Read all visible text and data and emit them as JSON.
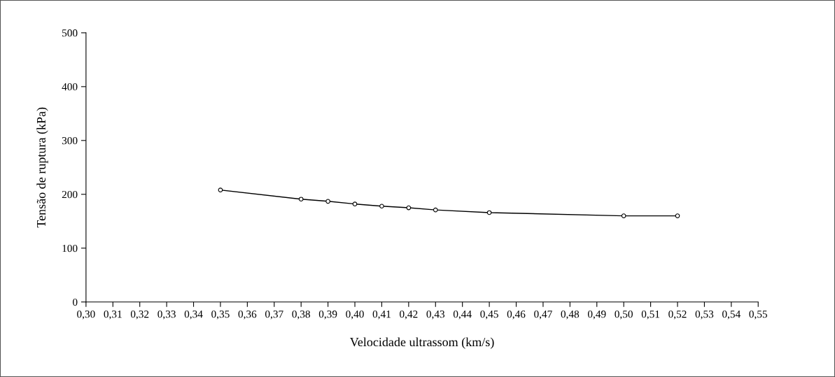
{
  "chart_data": {
    "type": "line",
    "xlabel": "Velocidade ultrassom (km/s)",
    "ylabel": "Tensão de ruptura (kPa)",
    "x": [
      0.35,
      0.38,
      0.39,
      0.4,
      0.41,
      0.42,
      0.43,
      0.45,
      0.5,
      0.52
    ],
    "series": [
      {
        "color": "#000000",
        "values": [
          208,
          191,
          187,
          182,
          178,
          175,
          171,
          166,
          160,
          160
        ]
      }
    ],
    "xlim": [
      0.3,
      0.55
    ],
    "xticks": [
      {
        "value": 0.3,
        "label": "0,30"
      },
      {
        "value": 0.31,
        "label": "0,31"
      },
      {
        "value": 0.32,
        "label": "0,32"
      },
      {
        "value": 0.33,
        "label": "0,33"
      },
      {
        "value": 0.34,
        "label": "0,34"
      },
      {
        "value": 0.35,
        "label": "0,35"
      },
      {
        "value": 0.36,
        "label": "0,36"
      },
      {
        "value": 0.37,
        "label": "0,37"
      },
      {
        "value": 0.38,
        "label": "0,38"
      },
      {
        "value": 0.39,
        "label": "0,39"
      },
      {
        "value": 0.4,
        "label": "0,40"
      },
      {
        "value": 0.41,
        "label": "0,41"
      },
      {
        "value": 0.42,
        "label": "0,42"
      },
      {
        "value": 0.43,
        "label": "0,43"
      },
      {
        "value": 0.44,
        "label": "0,44"
      },
      {
        "value": 0.45,
        "label": "0,45"
      },
      {
        "value": 0.46,
        "label": "0,46"
      },
      {
        "value": 0.47,
        "label": "0,47"
      },
      {
        "value": 0.48,
        "label": "0,48"
      },
      {
        "value": 0.49,
        "label": "0,49"
      },
      {
        "value": 0.5,
        "label": "0,50"
      },
      {
        "value": 0.51,
        "label": "0,51"
      },
      {
        "value": 0.52,
        "label": "0,52"
      },
      {
        "value": 0.53,
        "label": "0,53"
      },
      {
        "value": 0.54,
        "label": "0,54"
      },
      {
        "value": 0.55,
        "label": "0,55"
      }
    ],
    "ylim": [
      0,
      500
    ],
    "yticks": [
      0,
      100,
      200,
      300,
      400,
      500
    ],
    "grid": false,
    "legend": false,
    "marker": "circle",
    "line_style": "solid"
  }
}
